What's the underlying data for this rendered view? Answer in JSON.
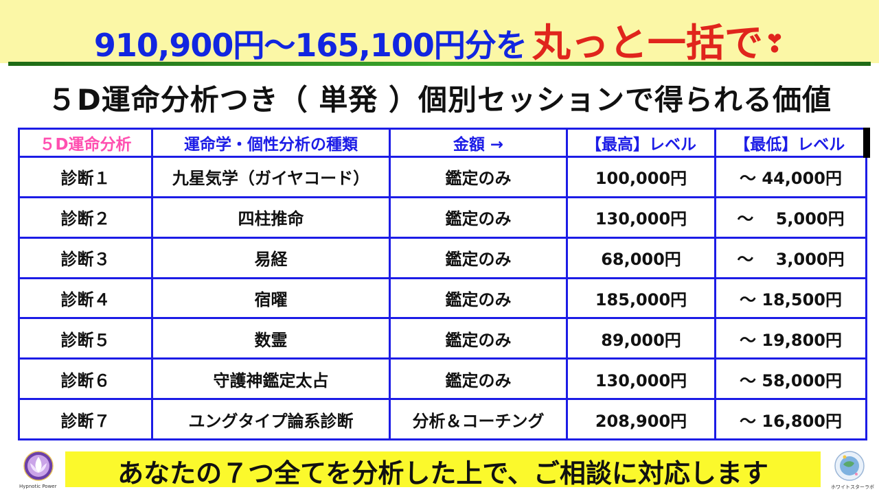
{
  "banner": {
    "blue_text": "910,900円〜165,100円分を",
    "red_text": "丸っと一括で",
    "heart": "❣"
  },
  "subtitle": "５D運命分析つき（ 単発 ）個別セッションで得られる価値",
  "table": {
    "headers": [
      "５D運命分析",
      "運命学・個性分析の種類",
      "金額 →",
      "【最高】レベル",
      "【最低】レベル"
    ],
    "rows": [
      {
        "name": "診断１",
        "method": "九星気学（ガイヤコード）",
        "type": "鑑定のみ",
        "max": "100,000円",
        "min": "〜 44,000円"
      },
      {
        "name": "診断２",
        "method": "四柱推命",
        "type": "鑑定のみ",
        "max": "130,000円",
        "min": "〜 　5,000円"
      },
      {
        "name": "診断３",
        "method": "易経",
        "type": "鑑定のみ",
        "max": "68,000円",
        "min": "〜 　3,000円"
      },
      {
        "name": "診断４",
        "method": "宿曜",
        "type": "鑑定のみ",
        "max": "185,000円",
        "min": "〜 18,500円"
      },
      {
        "name": "診断５",
        "method": "数霊",
        "type": "鑑定のみ",
        "max": "89,000円",
        "min": "〜 19,800円"
      },
      {
        "name": "診断６",
        "method": "守護神鑑定太占",
        "type": "鑑定のみ",
        "max": "130,000円",
        "min": "〜 58,000円"
      },
      {
        "name": "診断７",
        "method": "ユングタイプ論系診断",
        "type": "分析＆コーチング",
        "max": "208,900円",
        "min": "〜 16,800円"
      }
    ]
  },
  "bottom": "あなたの７つ全てを分析した上で、ご相談に対応します",
  "logos": {
    "left_caption": "Hypnotic Power",
    "right_caption": "ホワイトスターラボ"
  },
  "colors": {
    "blue": "#1c1ce6",
    "red": "#e0251c",
    "green": "#1b7d22",
    "pink": "#ff4fb0",
    "yellow": "#fbf92c"
  }
}
